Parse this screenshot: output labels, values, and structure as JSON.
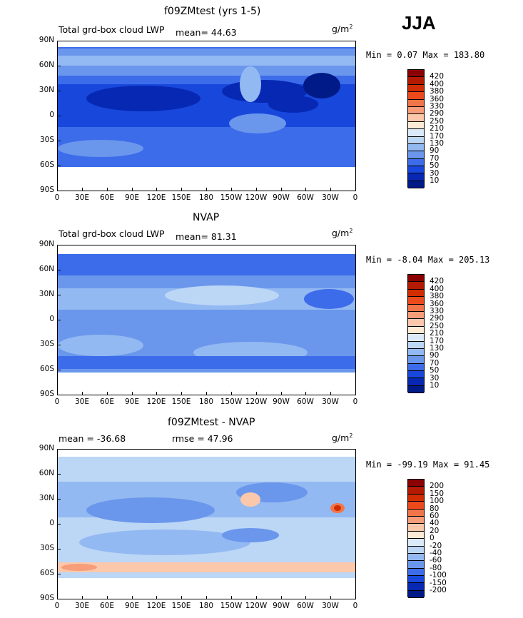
{
  "season": "JJA",
  "units": "g/m",
  "units_sup": "2",
  "lon_labels": [
    "0",
    "30E",
    "60E",
    "90E",
    "120E",
    "150E",
    "180",
    "150W",
    "120W",
    "90W",
    "60W",
    "30W",
    "0"
  ],
  "lat_labels": [
    "90N",
    "60N",
    "30N",
    "0",
    "30S",
    "60S",
    "90S"
  ],
  "panels": [
    {
      "title": "f09ZMtest (yrs 1-5)",
      "left_label": "Total grd-box cloud LWP",
      "mid_label": "mean=  44.63",
      "minmax": "Min =   0.07 Max = 183.80",
      "levels": [
        "420",
        "400",
        "380",
        "360",
        "330",
        "290",
        "250",
        "210",
        "170",
        "130",
        "90",
        "70",
        "50",
        "30",
        "10"
      ],
      "colors": [
        "#8b0000",
        "#b31a00",
        "#d22d00",
        "#eb4a1c",
        "#f27549",
        "#f79d7a",
        "#fcc8ab",
        "#fdebd6",
        "#dbeaf8",
        "#bcd6f6",
        "#93b9f2",
        "#6a97ec",
        "#3d6cea",
        "#1847dc",
        "#0628b3",
        "#001a87"
      ]
    },
    {
      "title": "NVAP",
      "left_label": "Total grd-box cloud LWP",
      "mid_label": "mean=  81.31",
      "minmax": "Min =  -8.04 Max = 205.13",
      "levels": [
        "420",
        "400",
        "380",
        "360",
        "330",
        "290",
        "250",
        "210",
        "170",
        "130",
        "90",
        "70",
        "50",
        "30",
        "10"
      ],
      "colors": [
        "#8b0000",
        "#b31a00",
        "#d22d00",
        "#eb4a1c",
        "#f27549",
        "#f79d7a",
        "#fcc8ab",
        "#fdebd6",
        "#dbeaf8",
        "#bcd6f6",
        "#93b9f2",
        "#6a97ec",
        "#3d6cea",
        "#1847dc",
        "#0628b3",
        "#001a87"
      ]
    },
    {
      "title": "f09ZMtest - NVAP",
      "left_label": "mean = -36.68",
      "mid_label": "rmse =  47.96",
      "minmax": "Min = -99.19 Max =  91.45",
      "levels": [
        "200",
        "150",
        "100",
        "80",
        "60",
        "40",
        "20",
        "0",
        "-20",
        "-40",
        "-60",
        "-80",
        "-100",
        "-150",
        "-200"
      ],
      "colors": [
        "#8b0000",
        "#b31a00",
        "#d22d00",
        "#eb4a1c",
        "#f27549",
        "#f79d7a",
        "#fcc8ab",
        "#fdebd6",
        "#dbeaf8",
        "#bcd6f6",
        "#93b9f2",
        "#6a97ec",
        "#3d6cea",
        "#1847dc",
        "#0628b3",
        "#001a87"
      ]
    }
  ]
}
